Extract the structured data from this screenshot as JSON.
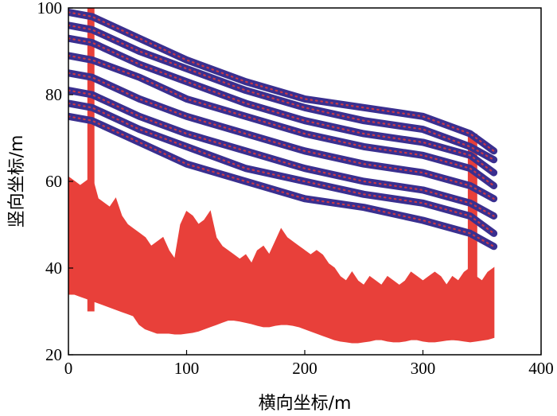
{
  "chart_data": {
    "type": "scatter",
    "title": "",
    "xlabel": "横向坐标/m",
    "ylabel": "竖向坐标/m",
    "xlim": [
      0,
      400
    ],
    "ylim": [
      20,
      100
    ],
    "xticks": [
      "0",
      "100",
      "200",
      "300",
      "400"
    ],
    "yticks": [
      "20",
      "40",
      "60",
      "80",
      "100"
    ],
    "grid": false,
    "legend": "none",
    "colors": {
      "power_line": "#3a2f8f",
      "power_line_highlight": "#e03a3a",
      "terrain": "#e8403a"
    },
    "series": [
      {
        "kind": "power-line",
        "x": [
          0,
          20,
          60,
          100,
          150,
          200,
          250,
          300,
          340,
          360
        ],
        "y": [
          99,
          98,
          93,
          88,
          83,
          79,
          77,
          75,
          71,
          67
        ]
      },
      {
        "kind": "power-line",
        "x": [
          0,
          20,
          60,
          100,
          150,
          200,
          250,
          300,
          340,
          360
        ],
        "y": [
          96,
          95,
          90,
          86,
          81,
          77,
          74,
          72,
          68,
          65
        ]
      },
      {
        "kind": "power-line",
        "x": [
          0,
          20,
          60,
          100,
          150,
          200,
          250,
          300,
          340,
          360
        ],
        "y": [
          93,
          92,
          87,
          83,
          78,
          74,
          71,
          69,
          66,
          62
        ]
      },
      {
        "kind": "power-line",
        "x": [
          0,
          20,
          60,
          100,
          150,
          200,
          250,
          300,
          340,
          360
        ],
        "y": [
          89,
          88,
          84,
          79,
          75,
          71,
          68,
          66,
          63,
          59
        ]
      },
      {
        "kind": "power-line",
        "x": [
          0,
          20,
          60,
          100,
          150,
          200,
          250,
          300,
          340,
          360
        ],
        "y": [
          85,
          84,
          79,
          75,
          71,
          67,
          64,
          62,
          59,
          56
        ]
      },
      {
        "kind": "power-line",
        "x": [
          0,
          20,
          60,
          100,
          150,
          200,
          250,
          300,
          340,
          360
        ],
        "y": [
          81,
          80,
          75,
          71,
          67,
          63,
          60,
          58,
          55,
          52
        ]
      },
      {
        "kind": "power-line",
        "x": [
          0,
          20,
          60,
          100,
          150,
          200,
          250,
          300,
          340,
          360
        ],
        "y": [
          78,
          77,
          72,
          68,
          63,
          60,
          57,
          55,
          52,
          48
        ]
      },
      {
        "kind": "power-line",
        "x": [
          0,
          20,
          60,
          100,
          150,
          200,
          250,
          300,
          340,
          360
        ],
        "y": [
          75,
          74,
          69,
          64,
          60,
          56,
          54,
          51,
          48,
          45
        ]
      },
      {
        "kind": "terrain-top",
        "x": [
          0,
          5,
          10,
          15,
          20,
          25,
          30,
          35,
          40,
          45,
          50,
          55,
          60,
          65,
          70,
          75,
          80,
          85,
          90,
          95,
          100,
          105,
          110,
          115,
          120,
          125,
          130,
          135,
          140,
          145,
          150,
          155,
          160,
          165,
          170,
          175,
          180,
          185,
          190,
          195,
          200,
          205,
          210,
          215,
          220,
          225,
          230,
          235,
          240,
          245,
          250,
          255,
          260,
          265,
          270,
          275,
          280,
          285,
          290,
          295,
          300,
          305,
          310,
          315,
          320,
          325,
          330,
          335,
          340,
          345,
          350,
          355,
          360
        ],
        "y": [
          61,
          60,
          59,
          60,
          61,
          56,
          55,
          54,
          56,
          52,
          50,
          49,
          48,
          47,
          45,
          46,
          47,
          44,
          42,
          50,
          53,
          52,
          50,
          51,
          53,
          47,
          45,
          44,
          43,
          42,
          43,
          41,
          44,
          45,
          43,
          46,
          49,
          47,
          46,
          45,
          44,
          43,
          44,
          43,
          41,
          40,
          38,
          37,
          39,
          37,
          36,
          38,
          37,
          36,
          38,
          37,
          36,
          37,
          39,
          38,
          37,
          38,
          39,
          38,
          36,
          38,
          37,
          39,
          40,
          38,
          37,
          39,
          40
        ]
      },
      {
        "kind": "terrain-bottom",
        "x": [
          0,
          5,
          10,
          15,
          20,
          25,
          30,
          35,
          40,
          45,
          50,
          55,
          60,
          65,
          70,
          75,
          80,
          85,
          90,
          95,
          100,
          105,
          110,
          115,
          120,
          125,
          130,
          135,
          140,
          145,
          150,
          155,
          160,
          165,
          170,
          175,
          180,
          185,
          190,
          195,
          200,
          205,
          210,
          215,
          220,
          225,
          230,
          235,
          240,
          245,
          250,
          255,
          260,
          265,
          270,
          275,
          280,
          285,
          290,
          295,
          300,
          305,
          310,
          315,
          320,
          325,
          330,
          335,
          340,
          345,
          350,
          355,
          360
        ],
        "y": [
          34,
          34,
          33.5,
          33,
          32.5,
          32,
          31.5,
          31,
          30.5,
          30,
          29.5,
          29,
          27,
          26,
          25.5,
          25,
          25,
          25,
          24.8,
          24.8,
          25,
          25.2,
          25.5,
          26,
          26.5,
          27,
          27.5,
          28,
          28,
          27.8,
          27.5,
          27.2,
          26.8,
          26.5,
          26.5,
          26.8,
          27,
          27,
          26.8,
          26.5,
          26,
          25.5,
          25,
          24.5,
          24,
          23.5,
          23.2,
          23,
          22.8,
          22.8,
          23,
          23.2,
          23.5,
          23.5,
          23.2,
          23,
          23,
          23.2,
          23.5,
          23.5,
          23.2,
          23,
          23,
          23.2,
          23.4,
          23.5,
          23.4,
          23.2,
          23,
          23.2,
          23.4,
          23.6,
          24
        ]
      },
      {
        "kind": "tower",
        "x": [
          16,
          22
        ],
        "y": [
          30,
          100
        ]
      },
      {
        "kind": "tower",
        "x": [
          338,
          346
        ],
        "y": [
          24,
          71
        ]
      }
    ]
  }
}
